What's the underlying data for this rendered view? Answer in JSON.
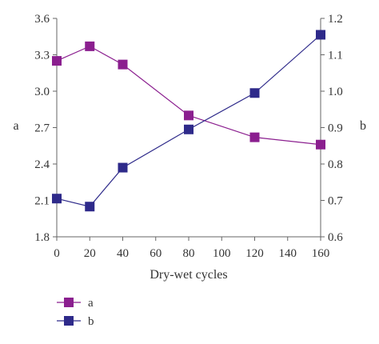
{
  "chart_data": {
    "type": "line",
    "x": [
      0,
      20,
      40,
      80,
      120,
      160
    ],
    "series": [
      {
        "name": "a",
        "axis": "left",
        "color": "#8b1f8f",
        "marker": "square",
        "values": [
          3.25,
          3.37,
          3.22,
          2.8,
          2.62,
          2.56
        ]
      },
      {
        "name": "b",
        "axis": "right",
        "color": "#2e2a8a",
        "marker": "square",
        "values": [
          0.705,
          0.683,
          0.79,
          0.895,
          0.995,
          1.155
        ]
      }
    ],
    "xlabel": "Dry-wet cycles",
    "ylabel_left": "a",
    "ylabel_right": "b",
    "xlim": [
      0,
      160
    ],
    "ylim_left": [
      1.8,
      3.6
    ],
    "ylim_right": [
      0.6,
      1.2
    ],
    "x_ticks": [
      "0",
      "20",
      "40",
      "60",
      "80",
      "100",
      "120",
      "140",
      "160"
    ],
    "y_left_ticks": [
      "1.8",
      "2.1",
      "2.4",
      "2.7",
      "3.0",
      "3.3",
      "3.6"
    ],
    "y_right_ticks": [
      "0.6",
      "0.7",
      "0.8",
      "0.9",
      "1.0",
      "1.1",
      "1.2"
    ],
    "grid": false,
    "legend_position": "bottom-left"
  }
}
